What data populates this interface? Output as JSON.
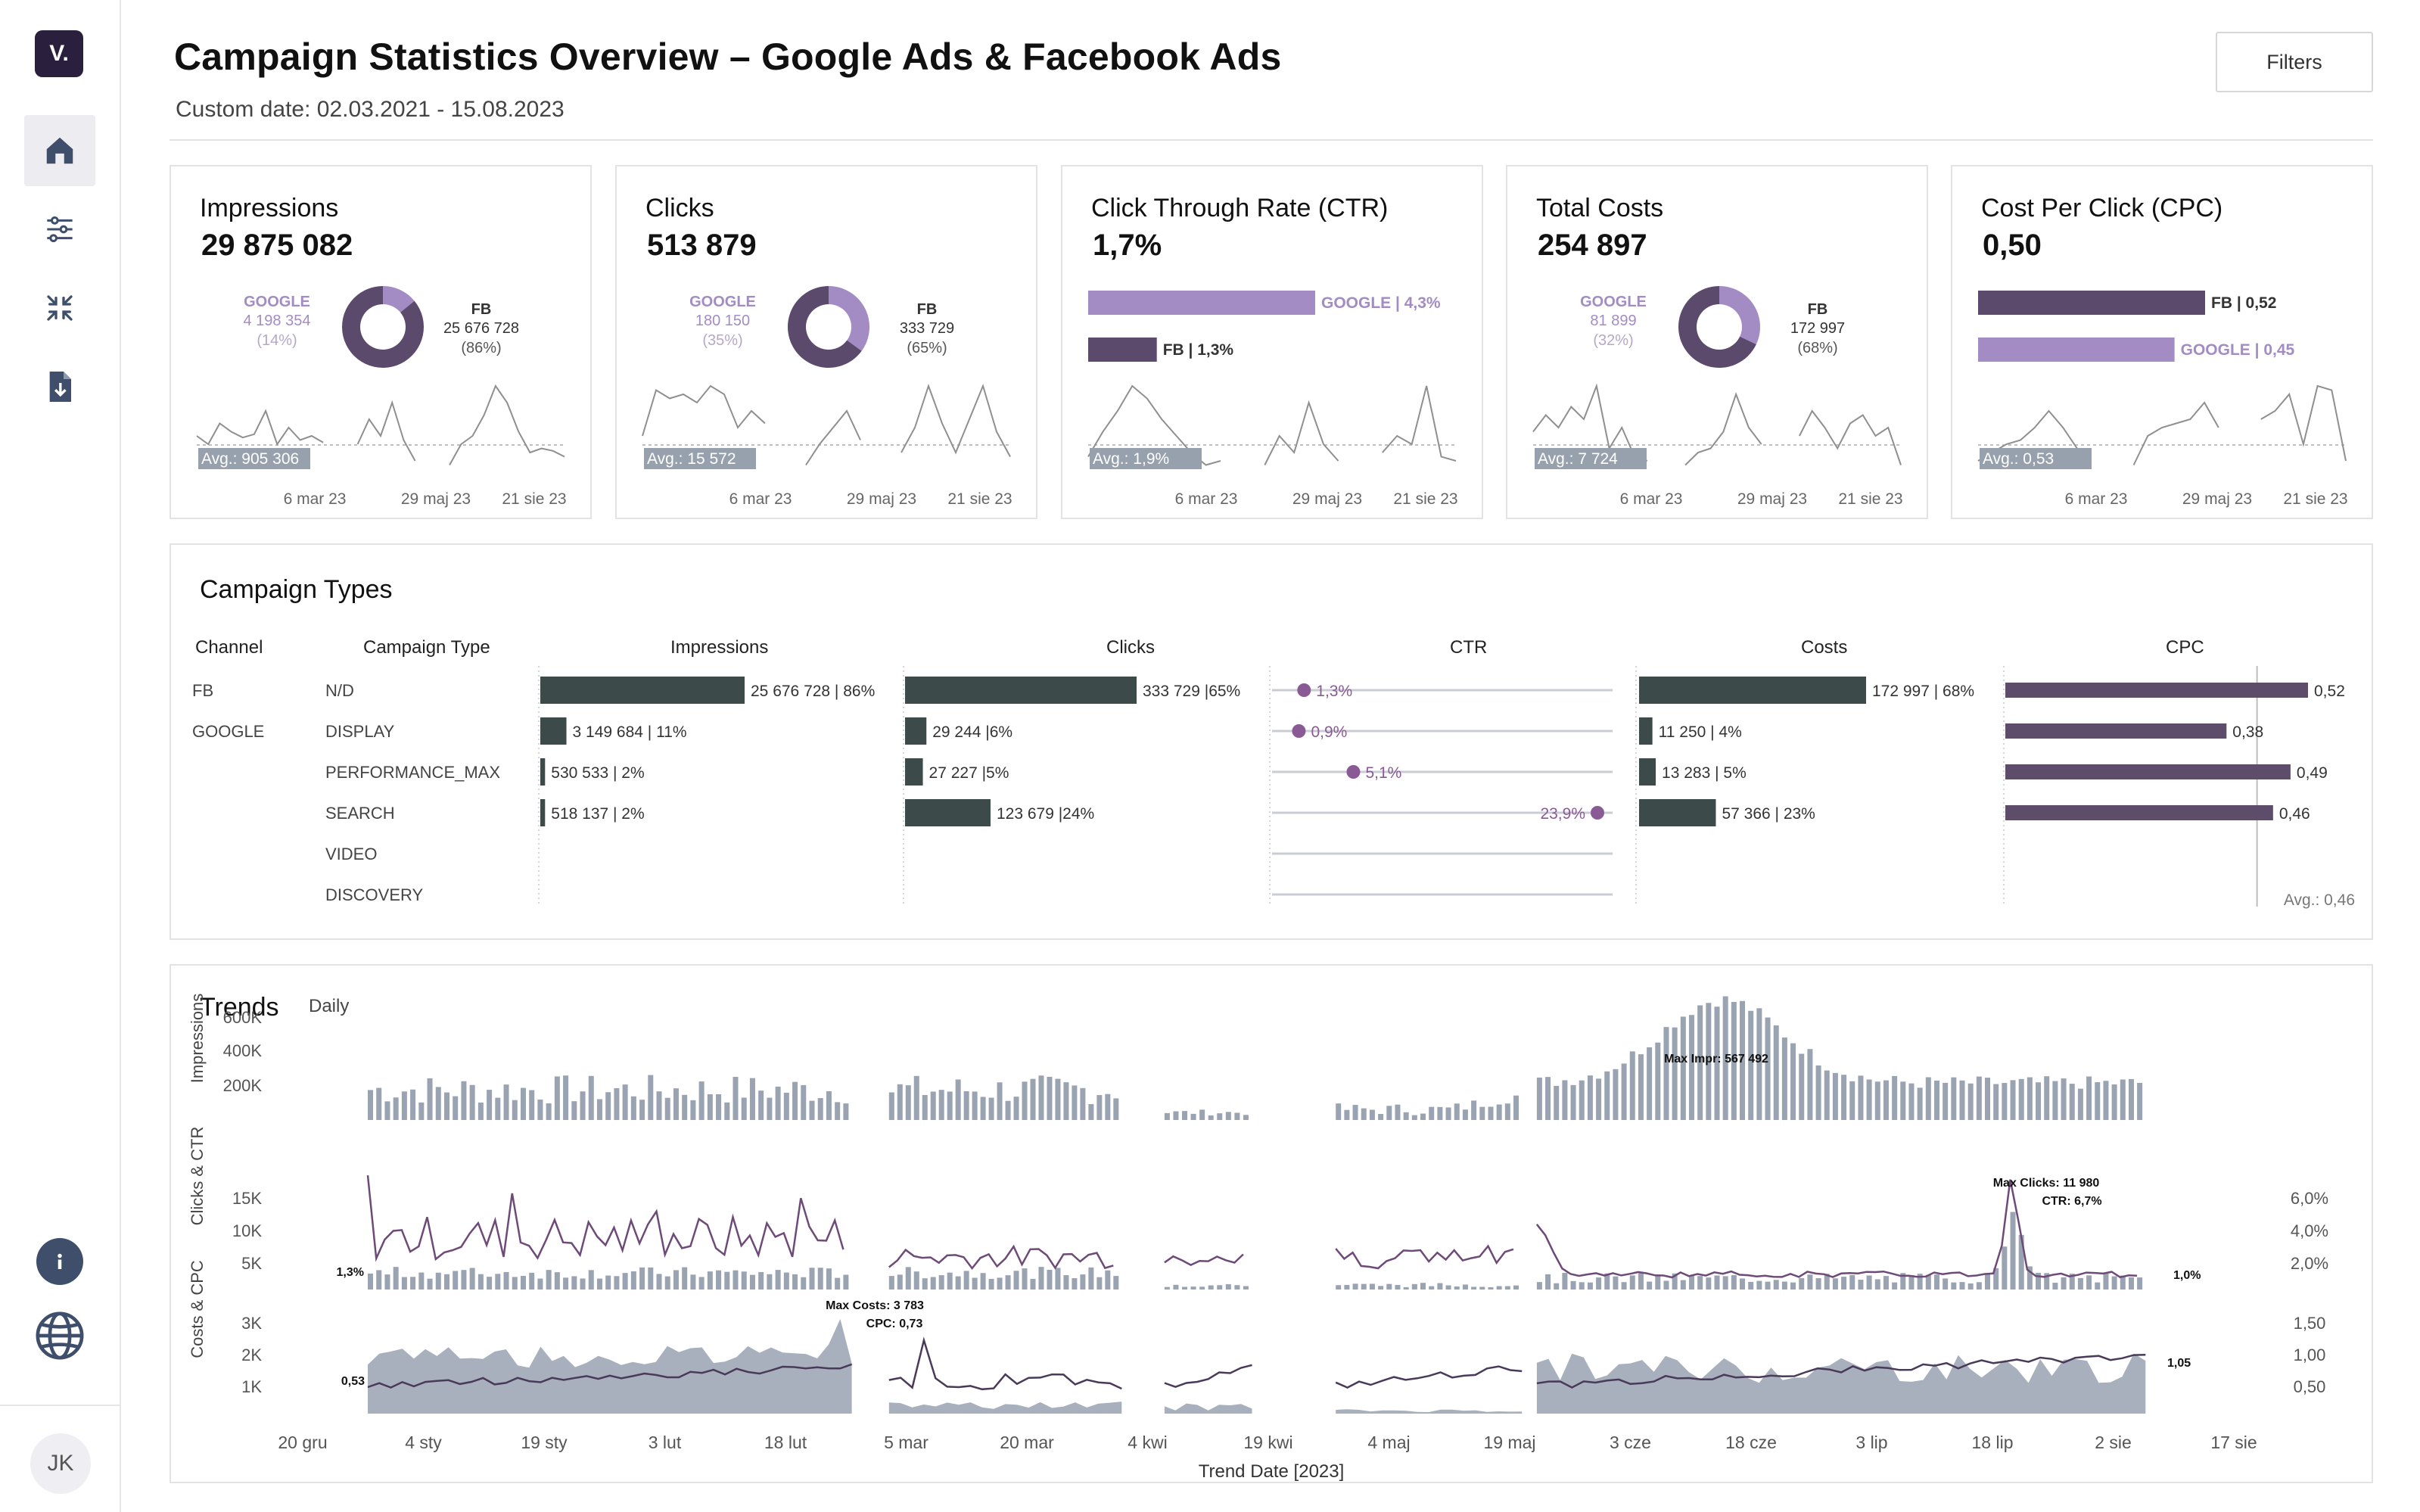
{
  "app": {
    "logo_text": "V.",
    "title": "Campaign Statistics Overview – Google Ads & Facebook Ads",
    "subtitle": "Custom date: 02.03.2021 - 15.08.2023",
    "filters_label": "Filters",
    "avatar_initials": "JK"
  },
  "sidebar": {
    "items": [
      {
        "icon": "home-icon",
        "active": true
      },
      {
        "icon": "sliders-icon",
        "active": false
      },
      {
        "icon": "collapse-icon",
        "active": false
      },
      {
        "icon": "download-file-icon",
        "active": false
      }
    ],
    "bottom_icons": [
      "info-icon",
      "globe-icon"
    ]
  },
  "colors": {
    "fb": "#5b4a6b",
    "google": "#a38cc4",
    "bar_dark": "#3c4a4a",
    "trend_bar": "#9aa3b1",
    "line": "#6e4a78",
    "cpc_bar": "#5e4d6a",
    "avg_label_bg": "#97a1ad"
  },
  "kpis": [
    {
      "title": "Impressions",
      "value": "29 875 082",
      "kind": "donut",
      "google_label": "GOOGLE",
      "google_value": "4 198 354",
      "google_pct": "(14%)",
      "google_share": 0.14,
      "fb_label": "FB",
      "fb_value": "25 676 728",
      "fb_pct": "(86%)",
      "avg_label": "Avg.: 905 306",
      "dates": [
        "6 mar 23",
        "29 maj 23",
        "21 sie 23"
      ],
      "spark": [
        [
          0.6,
          0.7,
          0.45,
          0.55,
          0.62,
          0.58,
          0.3,
          0.7,
          0.5,
          0.65,
          0.6,
          0.68
        ],
        [
          0.7,
          0.4,
          0.6,
          0.2,
          0.65,
          0.9
        ],
        [
          0.95,
          0.7,
          0.6,
          0.35,
          0.0,
          0.2,
          0.55,
          0.8,
          0.75,
          0.78,
          0.85
        ]
      ]
    },
    {
      "title": "Clicks",
      "value": "513 879",
      "kind": "donut",
      "google_label": "GOOGLE",
      "google_value": "180 150",
      "google_pct": "(35%)",
      "google_share": 0.35,
      "fb_label": "FB",
      "fb_value": "333 729",
      "fb_pct": "(65%)",
      "avg_label": "Avg.: 15 572",
      "dates": [
        "6 mar 23",
        "29 maj 23",
        "21 sie 23"
      ],
      "spark": [
        [
          0.6,
          0.05,
          0.15,
          0.1,
          0.2,
          0.0,
          0.1,
          0.5,
          0.3,
          0.45
        ],
        [
          0.95,
          0.7,
          0.5,
          0.3,
          0.65
        ],
        [
          0.8,
          0.5,
          0.0,
          0.45,
          0.8,
          0.4,
          0.0,
          0.55,
          0.85
        ]
      ]
    },
    {
      "title": "Click Through Rate (CTR)",
      "value": "1,7%",
      "kind": "bars",
      "bars": [
        {
          "label": "GOOGLE | 4,3%",
          "value": 4.3,
          "series": "google"
        },
        {
          "label": "FB | 1,3%",
          "value": 1.3,
          "series": "fb"
        }
      ],
      "avg_label": "Avg.: 1,9%",
      "dates": [
        "6 mar 23",
        "29 maj 23",
        "21 sie 23"
      ],
      "spark": [
        [
          0.85,
          0.55,
          0.3,
          0.0,
          0.15,
          0.4,
          0.6,
          0.8,
          0.95,
          0.9
        ],
        [
          0.95,
          0.6,
          0.8,
          0.2,
          0.7,
          0.9
        ],
        [
          0.8,
          0.6,
          0.7,
          0.0,
          0.85,
          0.9
        ]
      ]
    },
    {
      "title": "Total Costs",
      "value": "254 897",
      "kind": "donut",
      "google_label": "GOOGLE",
      "google_value": "81 899",
      "google_pct": "(32%)",
      "google_share": 0.32,
      "fb_label": "FB",
      "fb_value": "172 997",
      "fb_pct": "(68%)",
      "avg_label": "Avg.: 7 724",
      "dates": [
        "6 mar 23",
        "29 maj 23",
        "21 sie 23"
      ],
      "spark": [
        [
          0.55,
          0.35,
          0.5,
          0.25,
          0.4,
          0.0,
          0.75,
          0.5,
          0.85,
          0.9
        ],
        [
          0.95,
          0.8,
          0.75,
          0.55,
          0.1,
          0.5,
          0.7
        ],
        [
          0.6,
          0.3,
          0.5,
          0.75,
          0.45,
          0.35,
          0.6,
          0.5,
          0.95
        ]
      ]
    },
    {
      "title": "Cost Per Click (CPC)",
      "value": "0,50",
      "kind": "bars",
      "bars": [
        {
          "label": "FB | 0,52",
          "value": 0.52,
          "series": "fb"
        },
        {
          "label": "GOOGLE | 0,45",
          "value": 0.45,
          "series": "google"
        }
      ],
      "avg_label": "Avg.: 0,53",
      "dates": [
        "6 mar 23",
        "29 maj 23",
        "21 sie 23"
      ],
      "spark": [
        [
          0.9,
          0.8,
          0.7,
          0.65,
          0.5,
          0.3,
          0.5,
          0.75,
          0.9
        ],
        [
          0.95,
          0.6,
          0.5,
          0.45,
          0.4,
          0.2,
          0.5
        ],
        [
          0.4,
          0.3,
          0.1,
          0.7,
          0.0,
          0.05,
          0.9
        ]
      ]
    }
  ],
  "campaign_types": {
    "title": "Campaign Types",
    "headers": {
      "channel": "Channel",
      "type": "Campaign Type",
      "impressions": "Impressions",
      "clicks": "Clicks",
      "ctr": "CTR",
      "costs": "Costs",
      "cpc": "CPC"
    },
    "cpc_avg_label": "Avg.: 0,46",
    "rows": [
      {
        "channel": "FB",
        "type": "N/D",
        "impr": 86,
        "impr_label": "25 676 728 | 86%",
        "clicks": 65,
        "clicks_label": "333 729 |65%",
        "ctr": 1.3,
        "ctr_label": "1,3%",
        "costs": 68,
        "costs_label": "172 997 | 68%",
        "cpc": 0.52,
        "cpc_label": "0,52"
      },
      {
        "channel": "GOOGLE",
        "type": "DISPLAY",
        "impr": 11,
        "impr_label": "3 149 684 | 11%",
        "clicks": 6,
        "clicks_label": "29 244 |6%",
        "ctr": 0.9,
        "ctr_label": "0,9%",
        "costs": 4,
        "costs_label": "11 250 | 4%",
        "cpc": 0.38,
        "cpc_label": "0,38"
      },
      {
        "channel": "",
        "type": "PERFORMANCE_MAX",
        "impr": 2,
        "impr_label": "530 533 | 2%",
        "clicks": 5,
        "clicks_label": "27 227 |5%",
        "ctr": 5.1,
        "ctr_label": "5,1%",
        "costs": 5,
        "costs_label": "13 283 | 5%",
        "cpc": 0.49,
        "cpc_label": "0,49"
      },
      {
        "channel": "",
        "type": "SEARCH",
        "impr": 2,
        "impr_label": "518 137 | 2%",
        "clicks": 24,
        "clicks_label": "123 679 |24%",
        "ctr": 23.9,
        "ctr_label": "23,9%",
        "costs": 23,
        "costs_label": "57 366 | 23%",
        "cpc": 0.46,
        "cpc_label": "0,46"
      },
      {
        "channel": "",
        "type": "VIDEO",
        "impr": null,
        "impr_label": "",
        "clicks": null,
        "clicks_label": "",
        "ctr": null,
        "ctr_label": "",
        "costs": null,
        "costs_label": "",
        "cpc": null,
        "cpc_label": ""
      },
      {
        "channel": "",
        "type": "DISCOVERY",
        "impr": null,
        "impr_label": "",
        "clicks": null,
        "clicks_label": "",
        "ctr": null,
        "ctr_label": "",
        "costs": null,
        "costs_label": "",
        "cpc": null,
        "cpc_label": ""
      }
    ]
  },
  "trends": {
    "title": "Trends",
    "granularity": "Daily",
    "x_axis_title": "Trend Date [2023]",
    "x_ticks": [
      "20 gru",
      "4 sty",
      "19 sty",
      "3 lut",
      "18 lut",
      "5 mar",
      "20 mar",
      "4 kwi",
      "19 kwi",
      "4 maj",
      "19 maj",
      "3 cze",
      "18 cze",
      "3 lip",
      "18 lip",
      "2 sie",
      "17 sie"
    ],
    "impr_axis": {
      "title": "Impressions",
      "ticks": [
        "600K",
        "400K",
        "200K"
      ]
    },
    "clicks_axis": {
      "title": "Clicks & CTR",
      "ticks": [
        "15K",
        "10K",
        "5K"
      ],
      "right_ticks": [
        "6,0%",
        "4,0%",
        "2,0%"
      ]
    },
    "costs_axis": {
      "title": "Costs & CPC",
      "ticks": [
        "3K",
        "2K",
        "1K"
      ],
      "right_ticks": [
        "1,50",
        "1,00",
        "0,50"
      ]
    },
    "annotations": {
      "max_impr": "Max Impr: 567 492",
      "max_clicks": "Max Clicks: 11 980",
      "max_clicks_ctr": "CTR: 6,7%",
      "max_costs": "Max Costs: 3 783",
      "max_costs_cpc": "CPC: 0,73",
      "ctr_start": "1,3%",
      "ctr_end": "1,0%",
      "cpc_start": "0,53",
      "cpc_end": "1,05"
    }
  }
}
